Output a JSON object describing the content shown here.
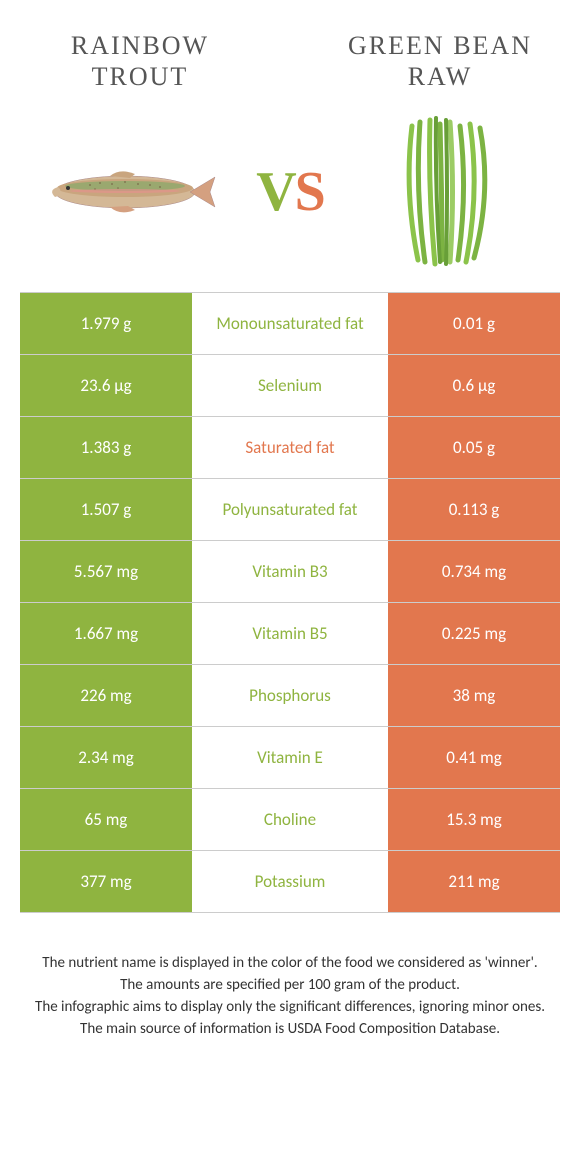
{
  "colors": {
    "left": "#8fb440",
    "right": "#e2774e",
    "border": "#cccccc",
    "text": "#555555",
    "white": "#ffffff"
  },
  "fonts": {
    "title_size": 26,
    "vs_size": 56,
    "cell_size": 17,
    "footer_size": 15
  },
  "left_title": "Rainbow trout",
  "right_title": "Green bean raw",
  "vs_label_v": "V",
  "vs_label_s": "S",
  "rows": [
    {
      "left": "1.979 g",
      "label": "Monounsaturated fat",
      "right": "0.01 g",
      "winner": "left"
    },
    {
      "left": "23.6 µg",
      "label": "Selenium",
      "right": "0.6 µg",
      "winner": "left"
    },
    {
      "left": "1.383 g",
      "label": "Saturated fat",
      "right": "0.05 g",
      "winner": "right"
    },
    {
      "left": "1.507 g",
      "label": "Polyunsaturated fat",
      "right": "0.113 g",
      "winner": "left"
    },
    {
      "left": "5.567 mg",
      "label": "Vitamin B3",
      "right": "0.734 mg",
      "winner": "left"
    },
    {
      "left": "1.667 mg",
      "label": "Vitamin B5",
      "right": "0.225 mg",
      "winner": "left"
    },
    {
      "left": "226 mg",
      "label": "Phosphorus",
      "right": "38 mg",
      "winner": "left"
    },
    {
      "left": "2.34 mg",
      "label": "Vitamin E",
      "right": "0.41 mg",
      "winner": "left"
    },
    {
      "left": "65 mg",
      "label": "Choline",
      "right": "15.3 mg",
      "winner": "left"
    },
    {
      "left": "377 mg",
      "label": "Potassium",
      "right": "211 mg",
      "winner": "left"
    }
  ],
  "footer_lines": [
    "The nutrient name is displayed in the color of the food we considered as 'winner'.",
    "The amounts are specified per 100 gram of the product.",
    "The infographic aims to display only the significant differences, ignoring minor ones.",
    "The main source of information is USDA Food Composition Database."
  ]
}
